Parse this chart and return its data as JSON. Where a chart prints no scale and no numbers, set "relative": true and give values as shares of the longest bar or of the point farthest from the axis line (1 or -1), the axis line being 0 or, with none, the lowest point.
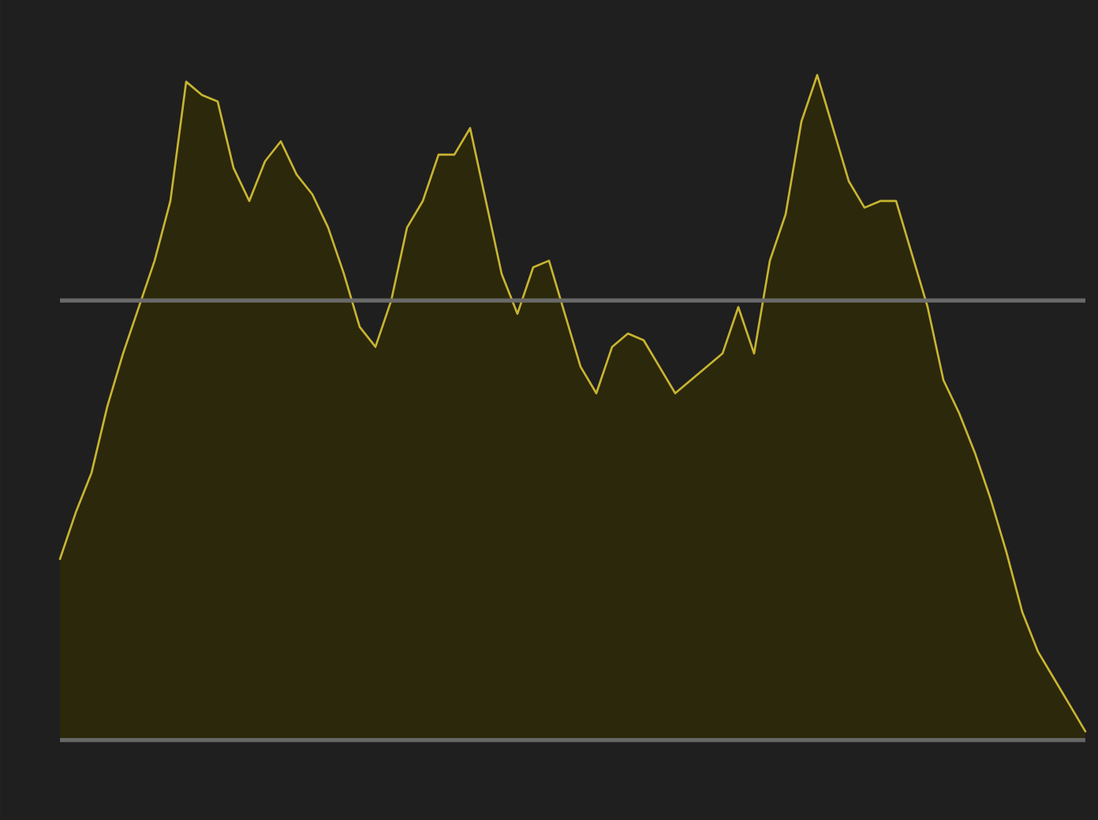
{
  "chart_data": {
    "type": "area",
    "relative": true,
    "color": "#c8b432",
    "categories": [
      null,
      null,
      null,
      null,
      null,
      null,
      null,
      null,
      null,
      null,
      null,
      null,
      null,
      null,
      null,
      null,
      null,
      null,
      null,
      null,
      null,
      null,
      null,
      null,
      null,
      null,
      null,
      null,
      null,
      null,
      null,
      null,
      null,
      null,
      null,
      null,
      null,
      null,
      null,
      null,
      null,
      null,
      null,
      null,
      null,
      null,
      null,
      null,
      null,
      null,
      null,
      null,
      null,
      null,
      null,
      null,
      null,
      null,
      null,
      null,
      null,
      null,
      null,
      null,
      null,
      null
    ],
    "values": [
      0.27,
      0.34,
      0.4,
      0.5,
      0.58,
      0.65,
      0.72,
      0.81,
      0.99,
      0.97,
      0.96,
      0.86,
      0.81,
      0.87,
      0.9,
      0.85,
      0.82,
      0.77,
      0.7,
      0.62,
      0.59,
      0.66,
      0.77,
      0.81,
      0.88,
      0.88,
      0.92,
      0.81,
      0.7,
      0.64,
      0.71,
      0.72,
      0.64,
      0.56,
      0.52,
      0.59,
      0.61,
      0.6,
      0.56,
      0.52,
      0.54,
      0.56,
      0.58,
      0.65,
      0.58,
      0.72,
      0.79,
      0.93,
      1,
      0.92,
      0.84,
      0.8,
      0.81,
      0.81,
      0.73,
      0.65,
      0.54,
      0.49,
      0.43,
      0.36,
      0.28,
      0.19,
      0.13,
      0.09,
      0.05,
      0.01
    ],
    "ref_lines": [
      {
        "axis": "y",
        "value": 0.66,
        "color": "#6a6a6a"
      }
    ]
  }
}
